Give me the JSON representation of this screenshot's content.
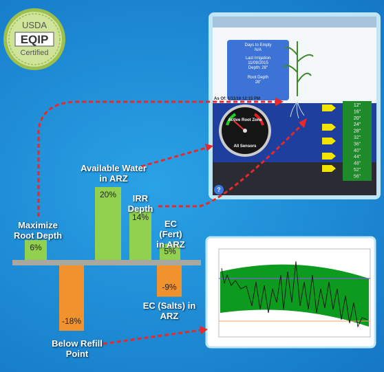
{
  "badge": {
    "line1": "USDA",
    "line2": "EQIP",
    "line3": "Certified"
  },
  "chart_data": {
    "type": "bar",
    "categories": [
      "Maximize Root Depth",
      "Below Refill Point",
      "Available Water in ARZ",
      "IRR Depth",
      "EC (Fert) in ARZ",
      "EC (Salts) in ARZ"
    ],
    "values": [
      6,
      -18,
      20,
      14,
      5,
      -9
    ],
    "value_labels": [
      "6%",
      "-18%",
      "20%",
      "14%",
      "5%",
      "-9%"
    ],
    "colors": [
      "#92d050",
      "#f0922e",
      "#92d050",
      "#92d050",
      "#92d050",
      "#f0922e"
    ]
  },
  "phone": {
    "info": [
      "Days to Empty",
      "N/A",
      "Last Irrigation",
      "11/09/2015",
      "Depth: 28\"",
      "Root Depth",
      "28\""
    ],
    "as_of": "As Of: 1/11/16 12:15 PM",
    "gauge_top": "Active Root Zone",
    "gauge_bottom": "All Sensors",
    "help": "?",
    "depths": [
      "12\"",
      "16\"",
      "20\"",
      "24\"",
      "28\"",
      "32\"",
      "36\"",
      "40\"",
      "44\"",
      "48\"",
      "52\"",
      "56\""
    ]
  }
}
